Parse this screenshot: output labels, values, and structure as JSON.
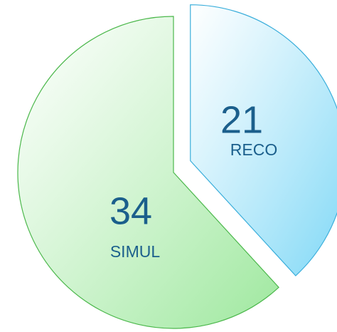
{
  "chart_data": {
    "type": "pie",
    "categories": [
      "RECO",
      "SIMUL"
    ],
    "values": [
      21,
      34
    ],
    "colors": [
      "#7fd8f6",
      "#9ee89e"
    ],
    "edge_colors": [
      "#3aaedb",
      "#4cb84c"
    ]
  }
}
